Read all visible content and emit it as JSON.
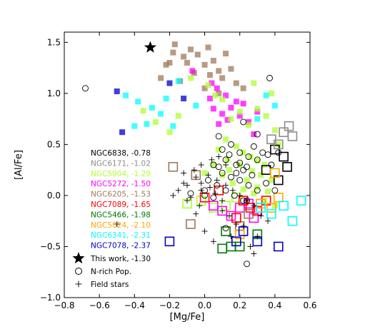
{
  "colors": {
    "NGC6838": "#000000",
    "NGC6171": "#8c8c8c",
    "NGC5904": "#adff2f",
    "NGC5272": "#ff00ff",
    "NGC6205": "#a0785a",
    "NGC7089": "#ff0000",
    "NGC5466": "#007800",
    "NGC5024": "#ffa500",
    "NGC6341": "#00ffff",
    "NGC7078": "#0000c8",
    "this_work": "#000000",
    "n_rich": "#000000",
    "field": "#000000"
  },
  "chart_data": {
    "type": "scatter",
    "xlabel": "[Mg/Fe]",
    "ylabel": "[Al/Fe]",
    "xlim": [
      -0.8,
      0.6
    ],
    "ylim": [
      -1.0,
      1.6
    ],
    "xticks": [
      "−0.8",
      "−0.6",
      "−0.4",
      "−0.2",
      "0.0",
      "0.2",
      "0.4",
      "0.6"
    ],
    "xtick_values": [
      -0.8,
      -0.6,
      -0.4,
      -0.2,
      0.0,
      0.2,
      0.4,
      0.6
    ],
    "yticks": [
      "−1.0",
      "−0.5",
      "0.0",
      "0.5",
      "1.0",
      "1.5"
    ],
    "ytick_values": [
      -1.0,
      -0.5,
      0.0,
      0.5,
      1.0,
      1.5
    ],
    "grid": false,
    "legend_position": "left",
    "cluster_legend": [
      {
        "key": "NGC6838",
        "label": "NGC6838, -0.78"
      },
      {
        "key": "NGC6171",
        "label": "NGC6171, -1.02"
      },
      {
        "key": "NGC5904",
        "label": "NGC5904, -1.29"
      },
      {
        "key": "NGC5272",
        "label": "NGC5272, -1.50"
      },
      {
        "key": "NGC6205",
        "label": "NGC6205, -1.53"
      },
      {
        "key": "NGC7089",
        "label": "NGC7089, -1.65"
      },
      {
        "key": "NGC5466",
        "label": "NGC5466, -1.98"
      },
      {
        "key": "NGC5024",
        "label": "NGC5024, -2.10"
      },
      {
        "key": "NGC6341",
        "label": "NGC6341, -2.31"
      },
      {
        "key": "NGC7078",
        "label": "NGC7078, -2.37"
      }
    ],
    "marker_legend": [
      {
        "marker": "star",
        "label": "This work, -1.30"
      },
      {
        "marker": "circle",
        "label": "N-rich Pop."
      },
      {
        "marker": "plus",
        "label": "Field stars"
      }
    ],
    "series": [
      {
        "key": "NGC6205",
        "style": "filled",
        "points": [
          [
            -0.17,
            1.48
          ],
          [
            -0.18,
            1.4
          ],
          [
            -0.12,
            1.36
          ],
          [
            -0.08,
            1.43
          ],
          [
            -0.04,
            1.38
          ],
          [
            0.02,
            1.45
          ],
          [
            0.12,
            1.39
          ],
          [
            -0.22,
            1.28
          ],
          [
            -0.1,
            1.3
          ],
          [
            0.0,
            1.28
          ],
          [
            0.05,
            1.32
          ],
          [
            0.08,
            1.22
          ],
          [
            0.15,
            1.24
          ],
          [
            -0.25,
            1.15
          ],
          [
            -0.14,
            1.12
          ],
          [
            -0.06,
            1.2
          ],
          [
            0.03,
            1.18
          ],
          [
            0.1,
            1.15
          ],
          [
            0.18,
            1.1
          ],
          [
            0.0,
            1.05
          ],
          [
            0.08,
            1.0
          ],
          [
            -0.2,
            1.3
          ],
          [
            0.22,
            1.05
          ]
        ]
      },
      {
        "key": "NGC5272",
        "style": "filled",
        "points": [
          [
            -0.07,
            1.22
          ],
          [
            0.04,
            1.1
          ],
          [
            0.07,
            1.05
          ],
          [
            0.12,
            0.98
          ],
          [
            0.18,
            0.92
          ],
          [
            0.05,
            0.85
          ],
          [
            0.1,
            0.8
          ],
          [
            0.15,
            0.86
          ],
          [
            0.2,
            0.78
          ],
          [
            0.25,
            0.72
          ],
          [
            0.08,
            0.7
          ],
          [
            0.13,
            0.74
          ],
          [
            0.28,
            0.6
          ],
          [
            0.03,
            0.95
          ],
          [
            0.3,
            0.82
          ],
          [
            0.22,
            0.9
          ]
        ]
      },
      {
        "key": "NGC5904",
        "style": "filled",
        "points": [
          [
            -0.35,
            0.83
          ],
          [
            -0.28,
            0.72
          ],
          [
            -0.2,
            0.62
          ],
          [
            -0.15,
            0.78
          ],
          [
            -0.08,
            1.15
          ],
          [
            0.02,
            1.08
          ],
          [
            0.06,
            0.98
          ],
          [
            0.1,
            0.94
          ],
          [
            0.15,
            0.75
          ],
          [
            0.2,
            0.82
          ],
          [
            0.25,
            0.69
          ],
          [
            0.3,
            0.85
          ],
          [
            0.35,
            0.78
          ],
          [
            0.4,
            0.64
          ],
          [
            0.12,
            0.55
          ],
          [
            0.18,
            0.48
          ],
          [
            0.22,
            0.42
          ],
          [
            0.26,
            0.38
          ],
          [
            0.3,
            0.34
          ],
          [
            0.34,
            0.3
          ],
          [
            0.08,
            0.45
          ],
          [
            0.13,
            0.35
          ],
          [
            0.2,
            0.3
          ],
          [
            0.27,
            0.24
          ],
          [
            0.32,
            0.2
          ],
          [
            0.38,
            0.15
          ],
          [
            0.1,
            0.2
          ],
          [
            0.16,
            0.12
          ],
          [
            0.22,
            0.06
          ],
          [
            0.28,
            0.02
          ],
          [
            0.34,
            -0.05
          ],
          [
            0.4,
            -0.1
          ],
          [
            0.14,
            0.25
          ],
          [
            0.24,
            0.15
          ],
          [
            0.3,
            0.08
          ],
          [
            0.36,
            0.04
          ],
          [
            0.05,
            0.3
          ],
          [
            0.0,
            0.22
          ],
          [
            0.42,
            0.5
          ],
          [
            0.38,
            1.0
          ],
          [
            0.28,
            1.1
          ]
        ]
      },
      {
        "key": "NGC6341",
        "style": "filled",
        "points": [
          [
            -0.45,
            0.98
          ],
          [
            -0.38,
            0.92
          ],
          [
            -0.3,
            0.86
          ],
          [
            -0.22,
            0.95
          ],
          [
            -0.33,
            0.7
          ],
          [
            -0.25,
            0.8
          ],
          [
            -0.18,
            0.68
          ],
          [
            -0.4,
            0.68
          ],
          [
            -0.15,
            1.12
          ],
          [
            -0.05,
            0.88
          ],
          [
            0.35,
            0.98
          ],
          [
            0.4,
            0.88
          ],
          [
            0.3,
            0.75
          ]
        ]
      },
      {
        "key": "NGC7078",
        "style": "filled",
        "points": [
          [
            -0.5,
            1.02
          ],
          [
            -0.2,
            1.1
          ],
          [
            -0.12,
            0.95
          ],
          [
            -0.47,
            0.62
          ]
        ]
      },
      {
        "key": "NGC6838",
        "style": "open",
        "points": [
          [
            0.4,
            0.45
          ],
          [
            0.45,
            0.38
          ],
          [
            0.47,
            0.28
          ],
          [
            0.35,
            0.25
          ],
          [
            0.42,
            0.15
          ]
        ]
      },
      {
        "key": "NGC6171",
        "style": "open",
        "points": [
          [
            0.48,
            0.68
          ],
          [
            0.45,
            0.62
          ],
          [
            0.5,
            0.58
          ],
          [
            0.38,
            0.55
          ],
          [
            0.42,
            0.5
          ]
        ]
      },
      {
        "key": "NGC5904",
        "style": "open",
        "points": [
          [
            -0.1,
            -0.08
          ],
          [
            -0.02,
            -0.05
          ],
          [
            0.05,
            -0.12
          ],
          [
            0.12,
            -0.1
          ],
          [
            0.18,
            -0.02
          ]
        ]
      },
      {
        "key": "NGC5272",
        "style": "open",
        "points": [
          [
            0.1,
            -0.15
          ],
          [
            0.15,
            -0.2
          ],
          [
            0.2,
            -0.12
          ],
          [
            0.25,
            -0.08
          ],
          [
            0.05,
            -0.1
          ],
          [
            0.28,
            -0.22
          ]
        ]
      },
      {
        "key": "NGC6205",
        "style": "open",
        "points": [
          [
            -0.18,
            0.28
          ],
          [
            -0.05,
            0.2
          ],
          [
            0.2,
            -0.3
          ],
          [
            0.25,
            -0.18
          ],
          [
            -0.08,
            -0.28
          ]
        ]
      },
      {
        "key": "NGC7089",
        "style": "open",
        "points": [
          [
            0.0,
            -0.02
          ],
          [
            0.08,
            0.05
          ],
          [
            0.22,
            -0.05
          ],
          [
            0.3,
            -0.15
          ],
          [
            0.35,
            -0.05
          ],
          [
            0.18,
            -0.22
          ],
          [
            0.26,
            -0.12
          ]
        ]
      },
      {
        "key": "NGC5466",
        "style": "open",
        "points": [
          [
            0.1,
            -0.52
          ],
          [
            0.2,
            -0.5
          ],
          [
            0.12,
            -0.35
          ],
          [
            0.3,
            -0.38
          ],
          [
            0.15,
            -0.5
          ]
        ]
      },
      {
        "key": "NGC5024",
        "style": "open",
        "points": [
          [
            0.32,
            -0.08
          ],
          [
            0.38,
            -0.12
          ],
          [
            0.42,
            -0.02
          ],
          [
            0.2,
            -0.38
          ],
          [
            0.4,
            0.22
          ]
        ]
      },
      {
        "key": "NGC6341",
        "style": "open",
        "points": [
          [
            0.38,
            -0.18
          ],
          [
            0.5,
            -0.25
          ],
          [
            0.55,
            -0.05
          ],
          [
            0.45,
            -0.1
          ],
          [
            0.32,
            -0.12
          ]
        ]
      },
      {
        "key": "NGC7078",
        "style": "open",
        "points": [
          [
            -0.2,
            -0.45
          ],
          [
            0.18,
            -0.45
          ],
          [
            0.22,
            -0.35
          ],
          [
            0.3,
            -0.45
          ],
          [
            0.42,
            -0.5
          ]
        ]
      },
      {
        "key": "n_rich",
        "style": "circle",
        "points": [
          [
            -0.68,
            1.05
          ],
          [
            0.37,
            1.15
          ],
          [
            0.08,
            0.58
          ],
          [
            0.22,
            0.72
          ],
          [
            0.1,
            0.45
          ],
          [
            0.15,
            0.5
          ],
          [
            0.2,
            0.42
          ],
          [
            0.25,
            0.38
          ],
          [
            0.3,
            0.35
          ],
          [
            0.12,
            0.35
          ],
          [
            0.18,
            0.3
          ],
          [
            0.22,
            0.25
          ],
          [
            0.27,
            0.2
          ],
          [
            0.05,
            0.3
          ],
          [
            0.1,
            0.22
          ],
          [
            0.15,
            0.18
          ],
          [
            0.2,
            0.15
          ],
          [
            0.25,
            0.1
          ],
          [
            0.3,
            0.05
          ],
          [
            0.02,
            0.15
          ],
          [
            0.07,
            0.1
          ],
          [
            0.12,
            0.05
          ],
          [
            0.17,
            0.0
          ],
          [
            0.22,
            -0.05
          ],
          [
            0.0,
            0.05
          ],
          [
            0.05,
            -0.02
          ],
          [
            0.08,
            0.28
          ],
          [
            0.14,
            0.4
          ],
          [
            0.2,
            0.32
          ],
          [
            0.24,
            0.28
          ],
          [
            0.35,
            0.12
          ],
          [
            0.38,
            0.3
          ],
          [
            0.42,
            0.42
          ],
          [
            0.3,
            0.6
          ],
          [
            0.0,
            0.0
          ],
          [
            0.28,
            0.48
          ],
          [
            0.33,
            0.42
          ],
          [
            0.24,
            -0.67
          ],
          [
            0.24,
            -0.05
          ],
          [
            0.12,
            -0.32
          ],
          [
            -0.08,
            0.02
          ],
          [
            0.18,
            0.22
          ],
          [
            0.36,
            0.4
          ],
          [
            0.4,
            0.05
          ]
        ]
      },
      {
        "key": "field",
        "style": "plus",
        "points": [
          [
            -0.05,
            0.18
          ],
          [
            -0.1,
            0.1
          ],
          [
            -0.15,
            0.05
          ],
          [
            -0.08,
            -0.02
          ],
          [
            -0.02,
            0.12
          ],
          [
            0.03,
            0.08
          ],
          [
            0.06,
            0.02
          ],
          [
            0.1,
            -0.05
          ],
          [
            -0.12,
            0.12
          ],
          [
            -0.18,
            0.0
          ],
          [
            -0.06,
            0.25
          ],
          [
            0.02,
            0.2
          ],
          [
            0.07,
            0.15
          ],
          [
            0.12,
            0.1
          ],
          [
            0.16,
            0.05
          ],
          [
            0.2,
            0.0
          ],
          [
            0.24,
            -0.05
          ],
          [
            0.28,
            -0.1
          ],
          [
            0.32,
            -0.2
          ],
          [
            0.36,
            -0.25
          ],
          [
            0.1,
            -0.15
          ],
          [
            0.14,
            -0.2
          ],
          [
            0.18,
            -0.28
          ],
          [
            0.22,
            -0.3
          ],
          [
            -0.03,
            -0.1
          ],
          [
            -0.1,
            -0.05
          ],
          [
            0.26,
            -0.5
          ],
          [
            0.28,
            -0.57
          ],
          [
            -0.05,
            -0.18
          ],
          [
            -0.5,
            -0.28
          ],
          [
            0.0,
            -0.35
          ],
          [
            0.15,
            -0.4
          ],
          [
            0.3,
            -0.4
          ],
          [
            0.05,
            -0.45
          ],
          [
            -0.02,
            0.3
          ],
          [
            0.04,
            0.35
          ],
          [
            0.08,
            0.38
          ],
          [
            0.12,
            0.3
          ],
          [
            -0.12,
            0.22
          ],
          [
            -0.02,
            0.05
          ]
        ]
      },
      {
        "key": "this_work",
        "style": "star",
        "points": [
          [
            -0.31,
            1.45
          ]
        ]
      }
    ]
  }
}
